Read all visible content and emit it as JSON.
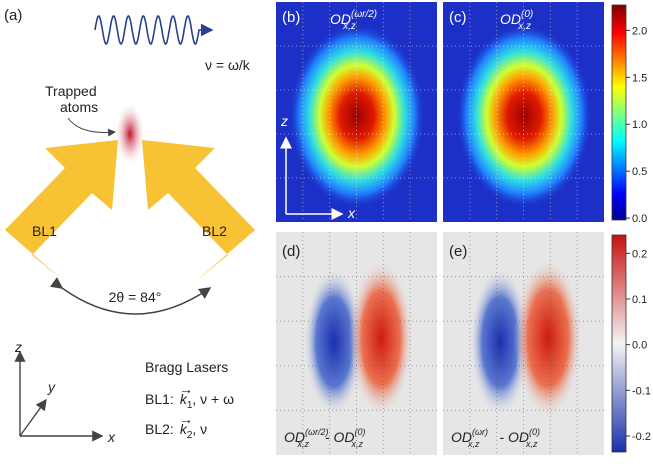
{
  "panel_a": {
    "label": "(a)",
    "wave_label": "ν = ω/k",
    "atoms_label": [
      "Trapped",
      "atoms"
    ],
    "beam1": "BL1",
    "beam2": "BL2",
    "angle_label": "2θ = 84°",
    "axes": {
      "z": "z",
      "y": "y",
      "x": "x"
    },
    "legend": {
      "title": "Bragg Lasers",
      "rows": [
        {
          "name": "BL1:",
          "vector": "k",
          "index": "1",
          "rest": ", ν + ω"
        },
        {
          "name": "BL2:",
          "vector": "k",
          "index": "2",
          "rest": ", ν"
        }
      ]
    }
  },
  "panel_b": {
    "label": "(b)",
    "title": {
      "base": "OD",
      "sup": "(ωr/2)",
      "sub": "x,z"
    },
    "axes": {
      "z": "z",
      "x": "x"
    }
  },
  "panel_c": {
    "label": "(c)",
    "title": {
      "base": "OD",
      "sup": "(0)",
      "sub": "x,z"
    }
  },
  "panel_d": {
    "label": "(d)",
    "title": [
      {
        "base": "OD",
        "sup": "(ωr/2)",
        "sub": "x,z"
      },
      {
        "base": " - OD",
        "sup": "(0)",
        "sub": "x,z"
      }
    ]
  },
  "panel_e": {
    "label": "(e)",
    "title": [
      {
        "base": "OD",
        "sup": "(ωr)",
        "sub": "x,z"
      },
      {
        "base": " - OD",
        "sup": "(0)",
        "sub": "x,z"
      }
    ]
  },
  "colorbar_top": {
    "ylim": [
      -0.02,
      2.27
    ],
    "yticks": [
      {
        "value": 0,
        "label": "0.0"
      },
      {
        "value": 0.5,
        "label": "0.5"
      },
      {
        "value": 1,
        "label": "1.0"
      },
      {
        "value": 1.5,
        "label": "1.5"
      },
      {
        "value": 2,
        "label": "2.0"
      }
    ]
  },
  "colorbar_bottom": {
    "ylim": [
      -0.235,
      0.24
    ],
    "yticks": [
      {
        "value": -0.2,
        "label": "-0.2"
      },
      {
        "value": -0.1,
        "label": "-0.1"
      },
      {
        "value": 0,
        "label": "0.0"
      },
      {
        "value": 0.1,
        "label": "0.1"
      },
      {
        "value": 0.2,
        "label": "0.2"
      }
    ]
  }
}
